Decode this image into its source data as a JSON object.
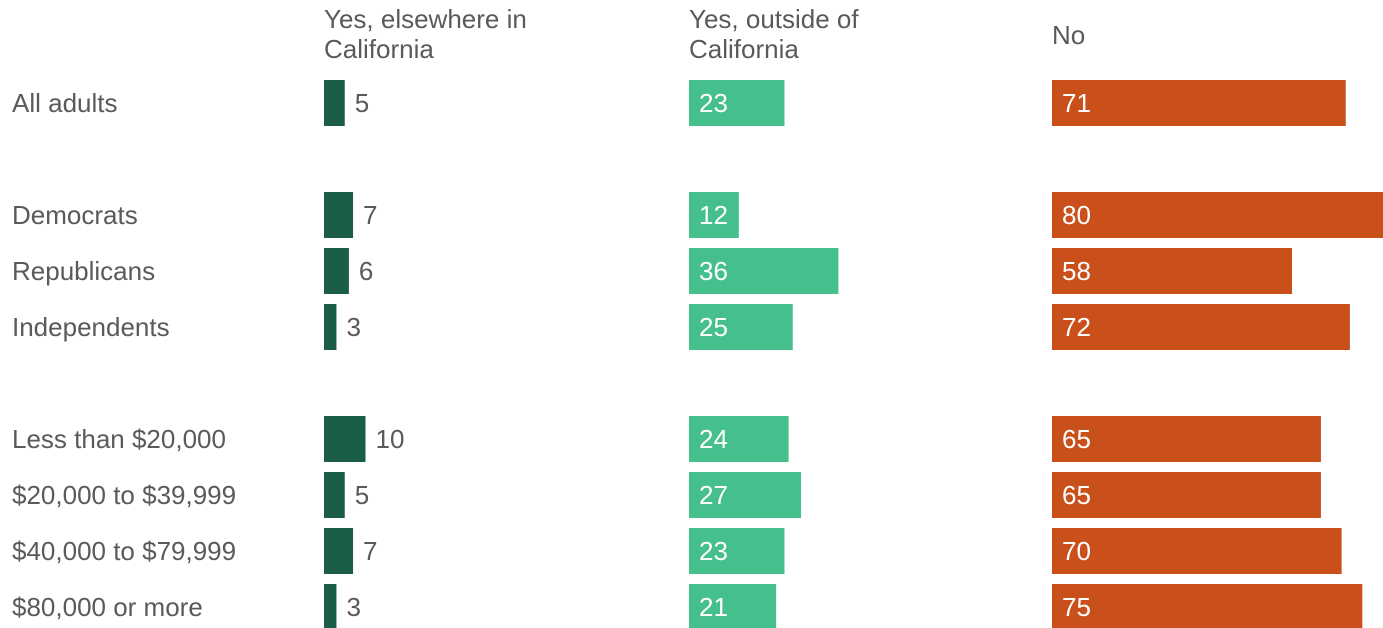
{
  "chart_data": {
    "type": "bar",
    "orientation": "horizontal",
    "layout": "small-multiples",
    "categories": [
      "All adults",
      "Democrats",
      "Republicans",
      "Independents",
      "Less than $20,000",
      "$20,000 to $39,999",
      "$40,000 to $79,999",
      "$80,000 or more"
    ],
    "groups": [
      [
        0
      ],
      [
        1,
        2,
        3
      ],
      [
        4,
        5,
        6,
        7
      ]
    ],
    "series": [
      {
        "name": "Yes, elsewhere in California",
        "name_lines": [
          "Yes, elsewhere in",
          "California"
        ],
        "color": "#1b5e47",
        "values": [
          5,
          7,
          6,
          3,
          10,
          5,
          7,
          3
        ]
      },
      {
        "name": "Yes, outside of California",
        "name_lines": [
          "Yes, outside of",
          "California"
        ],
        "color": "#45bf8c",
        "values": [
          23,
          12,
          36,
          25,
          24,
          27,
          23,
          21
        ]
      },
      {
        "name": "No",
        "name_lines": [
          "No"
        ],
        "color": "#c94f1b",
        "values": [
          71,
          80,
          58,
          72,
          65,
          65,
          70,
          75
        ]
      }
    ],
    "value_label_color_inside": "#ffffff",
    "value_label_color_outside": "#5a5a5a",
    "xlim": [
      0,
      80
    ]
  }
}
